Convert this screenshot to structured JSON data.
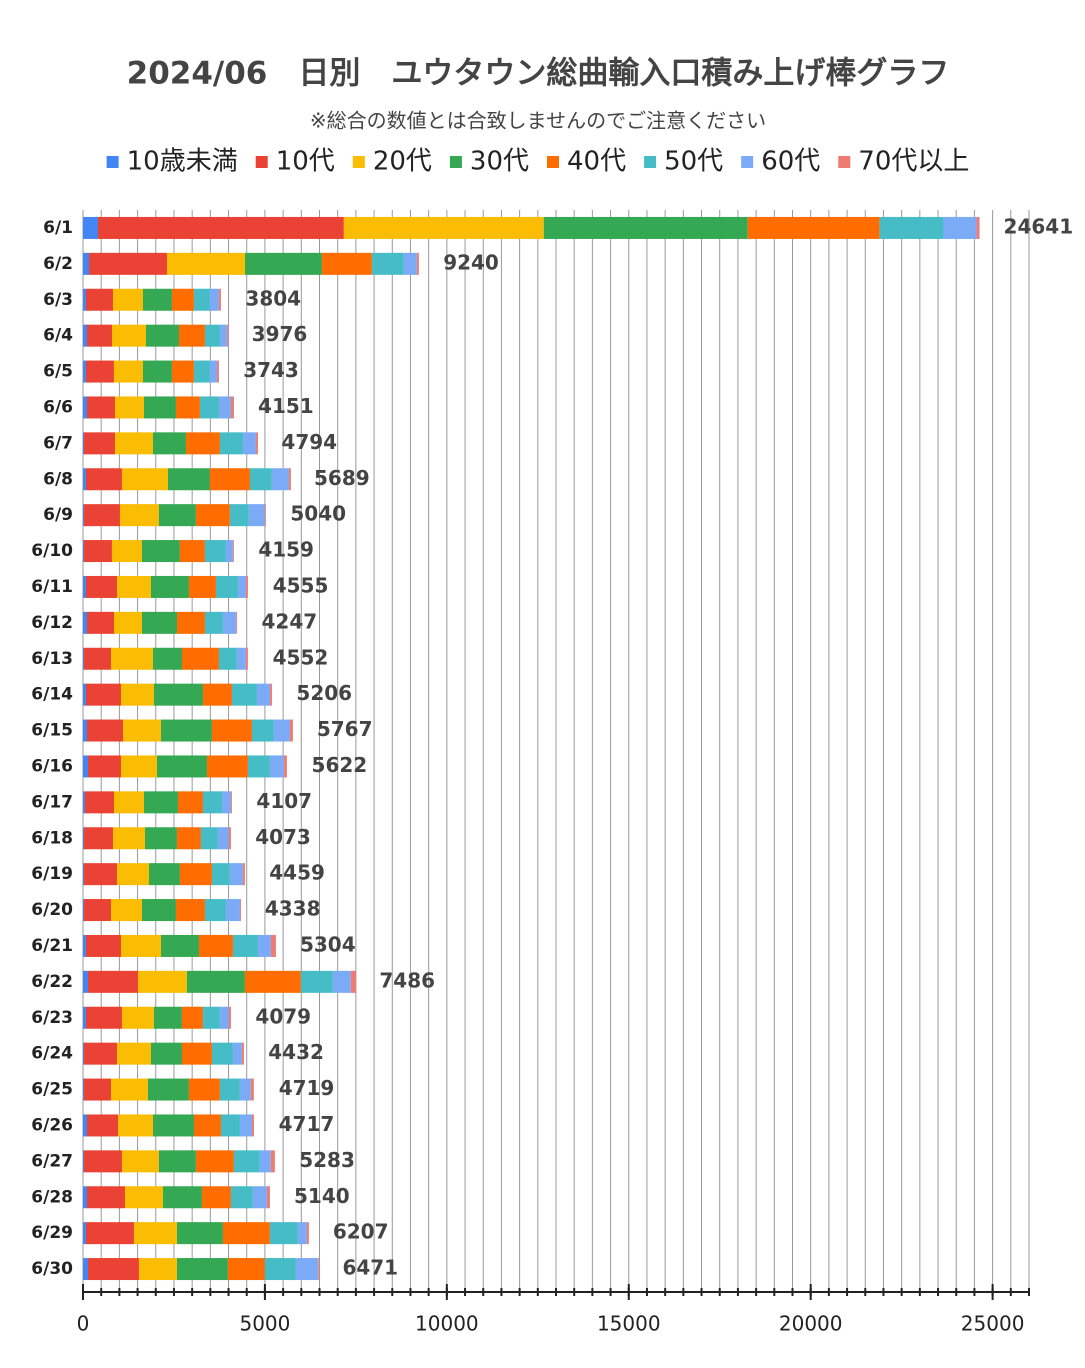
{
  "chart_data": {
    "type": "stacked_barh",
    "title": "2024/06　日別　ユウタウン総曲輸入口積み上げ棒グラフ",
    "subtitle": "※総合の数値とは合致しませんのでご注意ください",
    "categories": [
      "6/1",
      "6/2",
      "6/3",
      "6/4",
      "6/5",
      "6/6",
      "6/7",
      "6/8",
      "6/9",
      "6/10",
      "6/11",
      "6/12",
      "6/13",
      "6/14",
      "6/15",
      "6/16",
      "6/17",
      "6/18",
      "6/19",
      "6/20",
      "6/21",
      "6/22",
      "6/23",
      "6/24",
      "6/25",
      "6/26",
      "6/27",
      "6/28",
      "6/29",
      "6/30"
    ],
    "series": [
      {
        "name": "10歳未満",
        "color": "#4285f4",
        "values": [
          412,
          165,
          82,
          110,
          82,
          110,
          27,
          82,
          27,
          27,
          82,
          110,
          27,
          82,
          110,
          137,
          55,
          27,
          27,
          27,
          82,
          137,
          82,
          27,
          27,
          110,
          27,
          110,
          82,
          137
        ]
      },
      {
        "name": "10代",
        "color": "#ea4335",
        "values": [
          6757,
          2143,
          742,
          687,
          769,
          769,
          852,
          989,
          989,
          769,
          852,
          742,
          742,
          962,
          989,
          907,
          797,
          797,
          907,
          742,
          962,
          1374,
          989,
          907,
          742,
          852,
          1044,
          1044,
          1319,
          1401
        ]
      },
      {
        "name": "20代",
        "color": "#fbbc04",
        "values": [
          5495,
          2143,
          824,
          934,
          797,
          797,
          1044,
          1264,
          1071,
          824,
          934,
          769,
          1154,
          907,
          1044,
          989,
          824,
          879,
          879,
          852,
          1099,
          1346,
          879,
          934,
          1016,
          962,
          1016,
          1044,
          1181,
          1044
        ]
      },
      {
        "name": "30代",
        "color": "#34a853",
        "values": [
          5604,
          2115,
          797,
          907,
          797,
          879,
          907,
          1154,
          1016,
          1044,
          1044,
          962,
          797,
          1346,
          1401,
          1374,
          934,
          879,
          852,
          934,
          1044,
          1593,
          769,
          852,
          1126,
          1126,
          1016,
          1071,
          1264,
          1401
        ]
      },
      {
        "name": "40代",
        "color": "#ff6d01",
        "values": [
          3626,
          1374,
          604,
          714,
          604,
          659,
          934,
          1099,
          934,
          687,
          742,
          769,
          1016,
          797,
          1099,
          1126,
          687,
          659,
          879,
          797,
          934,
          1538,
          577,
          824,
          852,
          742,
          1044,
          797,
          1291,
          1016
        ]
      },
      {
        "name": "50代",
        "color": "#46bdc6",
        "values": [
          1758,
          879,
          440,
          412,
          440,
          522,
          632,
          604,
          522,
          577,
          604,
          494,
          494,
          687,
          604,
          604,
          522,
          467,
          494,
          577,
          687,
          879,
          467,
          577,
          549,
          522,
          714,
          604,
          769,
          852
        ]
      },
      {
        "name": "60代",
        "color": "#7baaf7",
        "values": [
          907,
          357,
          247,
          192,
          192,
          330,
          357,
          467,
          440,
          192,
          220,
          357,
          247,
          357,
          440,
          385,
          247,
          302,
          357,
          385,
          357,
          494,
          247,
          247,
          302,
          330,
          302,
          385,
          247,
          604
        ]
      },
      {
        "name": "70代以上",
        "color": "#f07b72",
        "values": [
          82,
          55,
          55,
          27,
          55,
          82,
          55,
          55,
          27,
          27,
          55,
          27,
          55,
          55,
          82,
          82,
          27,
          55,
          55,
          27,
          137,
          137,
          55,
          55,
          82,
          55,
          110,
          82,
          55,
          27
        ]
      }
    ],
    "totals": [
      24641,
      9240,
      3804,
      3976,
      3743,
      4151,
      4794,
      5689,
      5040,
      4159,
      4555,
      4247,
      4552,
      5206,
      5767,
      5622,
      4107,
      4073,
      4459,
      4338,
      5304,
      7486,
      4079,
      4432,
      4719,
      4717,
      5283,
      5140,
      6207,
      6471
    ],
    "xlim": [
      0,
      26000
    ],
    "xticks": [
      0,
      5000,
      10000,
      15000,
      20000,
      25000
    ],
    "minor_tick_step": 500,
    "grid": true,
    "legend": "top"
  }
}
